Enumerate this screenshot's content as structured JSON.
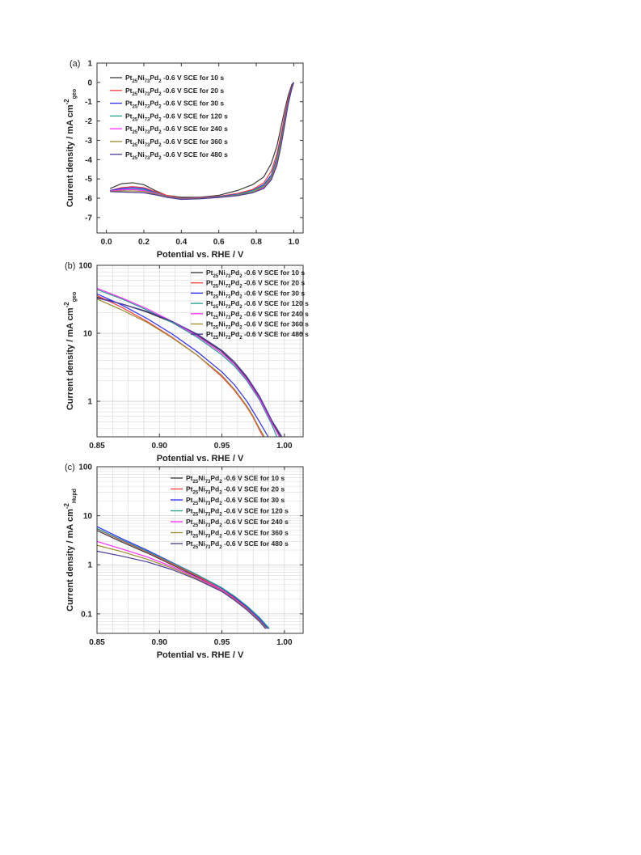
{
  "chart_data": [
    {
      "panel_label": "(a)",
      "type": "line",
      "xlabel": "Potential vs. RHE / V",
      "ylabel": "Current density / mA cm",
      "ylabel_sup": "-2",
      "ylabel_sub": "geo",
      "xscale": "linear",
      "yscale": "linear",
      "xlim": [
        -0.05,
        1.05
      ],
      "ylim": [
        -7.8,
        1
      ],
      "xticks": [
        0.0,
        0.2,
        0.4,
        0.6,
        0.8,
        1.0
      ],
      "xtick_labels": [
        "0.0",
        "0.2",
        "0.4",
        "0.6",
        "0.8",
        "1.0"
      ],
      "yticks": [
        1,
        0,
        -1,
        -2,
        -3,
        -4,
        -5,
        -6,
        -7
      ],
      "ytick_labels": [
        "1",
        "0",
        "-1",
        "-2",
        "-3",
        "-4",
        "-5",
        "-6",
        "-7"
      ],
      "grid": false,
      "legend_position": "top-left",
      "series": [
        {
          "name": [
            "Pt",
            "25",
            "Ni",
            "73",
            "Pd",
            "2",
            " -0.6 V SCE for 10 s"
          ],
          "color": "#3a3a3a",
          "x": [
            0.02,
            0.08,
            0.14,
            0.2,
            0.26,
            0.32,
            0.4,
            0.5,
            0.6,
            0.7,
            0.78,
            0.84,
            0.88,
            0.91,
            0.93,
            0.95,
            0.97,
            0.99,
            1.0
          ],
          "y": [
            -5.5,
            -5.25,
            -5.2,
            -5.3,
            -5.6,
            -5.85,
            -5.95,
            -5.95,
            -5.85,
            -5.6,
            -5.3,
            -4.9,
            -4.2,
            -3.3,
            -2.4,
            -1.5,
            -0.7,
            -0.1,
            0.0
          ]
        },
        {
          "name": [
            "Pt",
            "25",
            "Ni",
            "73",
            "Pd",
            "2",
            " -0.6 V SCE for 20 s"
          ],
          "color": "#ff3b3b",
          "x": [
            0.02,
            0.08,
            0.14,
            0.2,
            0.26,
            0.32,
            0.4,
            0.5,
            0.6,
            0.7,
            0.78,
            0.84,
            0.88,
            0.91,
            0.93,
            0.95,
            0.97,
            0.99,
            1.0
          ],
          "y": [
            -5.6,
            -5.45,
            -5.4,
            -5.45,
            -5.65,
            -5.85,
            -6.0,
            -5.98,
            -5.9,
            -5.75,
            -5.55,
            -5.2,
            -4.6,
            -3.7,
            -2.8,
            -1.8,
            -0.9,
            -0.2,
            0.0
          ]
        },
        {
          "name": [
            "Pt",
            "25",
            "Ni",
            "73",
            "Pd",
            "2",
            " -0.6 V SCE for 30 s"
          ],
          "color": "#2b2bff",
          "x": [
            0.02,
            0.08,
            0.14,
            0.2,
            0.26,
            0.32,
            0.4,
            0.5,
            0.6,
            0.7,
            0.78,
            0.84,
            0.88,
            0.91,
            0.93,
            0.95,
            0.97,
            0.99,
            1.0
          ],
          "y": [
            -5.6,
            -5.5,
            -5.45,
            -5.5,
            -5.7,
            -5.9,
            -6.02,
            -6.0,
            -5.92,
            -5.8,
            -5.6,
            -5.3,
            -4.8,
            -3.9,
            -3.0,
            -2.0,
            -1.0,
            -0.25,
            0.0
          ]
        },
        {
          "name": [
            "Pt",
            "25",
            "Ni",
            "73",
            "Pd",
            "2",
            " -0.6 V SCE for 120 s"
          ],
          "color": "#20a08a",
          "x": [
            0.02,
            0.08,
            0.14,
            0.2,
            0.26,
            0.32,
            0.4,
            0.5,
            0.6,
            0.7,
            0.78,
            0.84,
            0.88,
            0.91,
            0.93,
            0.95,
            0.97,
            0.99,
            1.0
          ],
          "y": [
            -5.62,
            -5.55,
            -5.52,
            -5.55,
            -5.72,
            -5.9,
            -6.02,
            -6.0,
            -5.93,
            -5.82,
            -5.62,
            -5.35,
            -4.9,
            -4.0,
            -3.1,
            -2.1,
            -1.05,
            -0.3,
            0.0
          ]
        },
        {
          "name": [
            "Pt",
            "25",
            "Ni",
            "73",
            "Pd",
            "2",
            " -0.6 V SCE for 240 s"
          ],
          "color": "#ff2bff",
          "x": [
            0.02,
            0.08,
            0.14,
            0.2,
            0.26,
            0.32,
            0.4,
            0.5,
            0.6,
            0.7,
            0.78,
            0.84,
            0.88,
            0.91,
            0.93,
            0.95,
            0.97,
            0.99,
            1.0
          ],
          "y": [
            -5.62,
            -5.57,
            -5.55,
            -5.6,
            -5.75,
            -5.92,
            -6.03,
            -6.01,
            -5.95,
            -5.85,
            -5.7,
            -5.45,
            -5.0,
            -4.2,
            -3.3,
            -2.2,
            -1.1,
            -0.3,
            0.0
          ]
        },
        {
          "name": [
            "Pt",
            "25",
            "Ni",
            "73",
            "Pd",
            "2",
            " -0.6 V SCE for 360 s"
          ],
          "color": "#9a8a2a",
          "x": [
            0.02,
            0.08,
            0.14,
            0.2,
            0.26,
            0.32,
            0.4,
            0.5,
            0.6,
            0.7,
            0.78,
            0.84,
            0.88,
            0.91,
            0.93,
            0.95,
            0.97,
            0.99,
            1.0
          ],
          "y": [
            -5.64,
            -5.62,
            -5.62,
            -5.65,
            -5.78,
            -5.93,
            -6.04,
            -6.02,
            -5.95,
            -5.85,
            -5.68,
            -5.4,
            -4.95,
            -4.1,
            -3.2,
            -2.15,
            -1.1,
            -0.3,
            0.0
          ]
        },
        {
          "name": [
            "Pt",
            "25",
            "Ni",
            "73",
            "Pd",
            "2",
            " -0.6 V SCE for 480 s"
          ],
          "color": "#4a3a9a",
          "x": [
            0.02,
            0.08,
            0.14,
            0.2,
            0.26,
            0.32,
            0.4,
            0.5,
            0.6,
            0.7,
            0.78,
            0.84,
            0.88,
            0.91,
            0.93,
            0.95,
            0.97,
            0.99,
            1.0
          ],
          "y": [
            -5.66,
            -5.68,
            -5.7,
            -5.72,
            -5.82,
            -5.95,
            -6.06,
            -6.03,
            -5.96,
            -5.87,
            -5.72,
            -5.5,
            -5.05,
            -4.3,
            -3.4,
            -2.3,
            -1.15,
            -0.3,
            0.0
          ]
        }
      ]
    },
    {
      "panel_label": "(b)",
      "type": "line",
      "xlabel": "Potential vs. RHE / V",
      "ylabel": "Current density / mA cm",
      "ylabel_sup": "-2",
      "ylabel_sub": "geo",
      "xscale": "linear",
      "yscale": "log",
      "xlim": [
        0.85,
        1.015
      ],
      "ylim": [
        0.3,
        100
      ],
      "xticks": [
        0.85,
        0.9,
        0.95,
        1.0
      ],
      "xtick_labels": [
        "0.85",
        "0.90",
        "0.95",
        "1.00"
      ],
      "yticks": [
        1,
        10,
        100
      ],
      "ytick_labels": [
        "1",
        "10",
        "100"
      ],
      "grid": true,
      "legend_position": "top-right",
      "series": [
        {
          "name": [
            "Pt",
            "25",
            "Ni",
            "73",
            "Pd",
            "2",
            " -0.6 V SCE for 10 s"
          ],
          "color": "#3a3a3a",
          "x": [
            0.85,
            0.87,
            0.89,
            0.91,
            0.93,
            0.95,
            0.96,
            0.97,
            0.98,
            0.99,
            0.997
          ],
          "y": [
            34,
            27,
            20.5,
            14.5,
            9.5,
            5.4,
            3.6,
            2.2,
            1.15,
            0.5,
            0.3
          ]
        },
        {
          "name": [
            "Pt",
            "25",
            "Ni",
            "73",
            "Pd",
            "2",
            " -0.6 V SCE for 20 s"
          ],
          "color": "#ff3b3b",
          "x": [
            0.85,
            0.87,
            0.89,
            0.91,
            0.93,
            0.95,
            0.96,
            0.97,
            0.975,
            0.98,
            0.983
          ],
          "y": [
            36,
            24,
            15,
            8.8,
            4.8,
            2.3,
            1.45,
            0.82,
            0.58,
            0.38,
            0.3
          ]
        },
        {
          "name": [
            "Pt",
            "25",
            "Ni",
            "73",
            "Pd",
            "2",
            " -0.6 V SCE for 30 s"
          ],
          "color": "#2b2bff",
          "x": [
            0.85,
            0.87,
            0.89,
            0.91,
            0.93,
            0.95,
            0.96,
            0.97,
            0.98,
            0.987
          ],
          "y": [
            38,
            26,
            16.5,
            9.8,
            5.4,
            2.7,
            1.75,
            1.0,
            0.5,
            0.3
          ]
        },
        {
          "name": [
            "Pt",
            "25",
            "Ni",
            "73",
            "Pd",
            "2",
            " -0.6 V SCE for 120 s"
          ],
          "color": "#20a08a",
          "x": [
            0.85,
            0.87,
            0.89,
            0.91,
            0.93,
            0.95,
            0.96,
            0.97,
            0.98,
            0.99,
            0.994
          ],
          "y": [
            44,
            32,
            22,
            14.5,
            8.8,
            4.8,
            3.3,
            2.0,
            1.05,
            0.45,
            0.3
          ]
        },
        {
          "name": [
            "Pt",
            "25",
            "Ni",
            "73",
            "Pd",
            "2",
            " -0.6 V SCE for 240 s"
          ],
          "color": "#ff2bff",
          "x": [
            0.85,
            0.87,
            0.89,
            0.91,
            0.93,
            0.95,
            0.96,
            0.97,
            0.98,
            0.99,
            0.996
          ],
          "y": [
            46,
            33,
            23,
            15,
            9.2,
            5.1,
            3.5,
            2.1,
            1.1,
            0.48,
            0.3
          ]
        },
        {
          "name": [
            "Pt",
            "25",
            "Ni",
            "73",
            "Pd",
            "2",
            " -0.6 V SCE for 360 s"
          ],
          "color": "#9a8a2a",
          "x": [
            0.85,
            0.87,
            0.89,
            0.91,
            0.93,
            0.95,
            0.96,
            0.97,
            0.975,
            0.98,
            0.984
          ],
          "y": [
            32,
            22,
            14.5,
            8.6,
            4.8,
            2.4,
            1.5,
            0.85,
            0.6,
            0.4,
            0.3
          ]
        },
        {
          "name": [
            "Pt",
            "25",
            "Ni",
            "73",
            "Pd",
            "2",
            " -0.6 V SCE for 480 s"
          ],
          "color": "#4a3a9a",
          "x": [
            0.85,
            0.87,
            0.89,
            0.91,
            0.93,
            0.95,
            0.96,
            0.97,
            0.98,
            0.99,
            0.998
          ],
          "y": [
            33,
            27,
            21,
            15,
            9.8,
            5.6,
            3.8,
            2.3,
            1.2,
            0.52,
            0.3
          ]
        }
      ]
    },
    {
      "panel_label": "(c)",
      "type": "line",
      "xlabel": "Potential vs. RHE / V",
      "ylabel": "Current density / mA cm",
      "ylabel_sup": "-2",
      "ylabel_sub": "Hupd",
      "xscale": "linear",
      "yscale": "log",
      "xlim": [
        0.85,
        1.015
      ],
      "ylim": [
        0.04,
        100
      ],
      "xticks": [
        0.85,
        0.9,
        0.95,
        1.0
      ],
      "xtick_labels": [
        "0.85",
        "0.90",
        "0.95",
        "1.00"
      ],
      "yticks": [
        0.1,
        1,
        10,
        100
      ],
      "ytick_labels": [
        "0.1",
        "1",
        "10",
        "100"
      ],
      "grid": true,
      "legend_position": "top-right",
      "series": [
        {
          "name": [
            "Pt",
            "25",
            "Ni",
            "73",
            "Pd",
            "2",
            " -0.6 V SCE for 10 s"
          ],
          "color": "#3a3a3a",
          "x": [
            0.85,
            0.87,
            0.89,
            0.91,
            0.93,
            0.95,
            0.96,
            0.97,
            0.98,
            0.985
          ],
          "y": [
            5.0,
            2.9,
            1.75,
            1.0,
            0.57,
            0.3,
            0.2,
            0.125,
            0.072,
            0.05
          ]
        },
        {
          "name": [
            "Pt",
            "25",
            "Ni",
            "73",
            "Pd",
            "2",
            " -0.6 V SCE for 20 s"
          ],
          "color": "#ff3b3b",
          "x": [
            0.85,
            0.87,
            0.89,
            0.91,
            0.93,
            0.95,
            0.96,
            0.97,
            0.98,
            0.986
          ],
          "y": [
            5.4,
            3.1,
            1.85,
            1.05,
            0.6,
            0.31,
            0.21,
            0.13,
            0.075,
            0.05
          ]
        },
        {
          "name": [
            "Pt",
            "25",
            "Ni",
            "73",
            "Pd",
            "2",
            " -0.6 V SCE for 30 s"
          ],
          "color": "#2b2bff",
          "x": [
            0.85,
            0.87,
            0.89,
            0.91,
            0.93,
            0.95,
            0.96,
            0.97,
            0.98,
            0.987
          ],
          "y": [
            6.0,
            3.4,
            2.0,
            1.12,
            0.63,
            0.33,
            0.22,
            0.138,
            0.08,
            0.05
          ]
        },
        {
          "name": [
            "Pt",
            "25",
            "Ni",
            "73",
            "Pd",
            "2",
            " -0.6 V SCE for 120 s"
          ],
          "color": "#20a08a",
          "x": [
            0.85,
            0.87,
            0.89,
            0.91,
            0.93,
            0.95,
            0.96,
            0.97,
            0.98,
            0.988
          ],
          "y": [
            5.5,
            3.2,
            1.9,
            1.1,
            0.63,
            0.34,
            0.23,
            0.145,
            0.085,
            0.05
          ]
        },
        {
          "name": [
            "Pt",
            "25",
            "Ni",
            "73",
            "Pd",
            "2",
            " -0.6 V SCE for 240 s"
          ],
          "color": "#ff2bff",
          "x": [
            0.85,
            0.87,
            0.89,
            0.91,
            0.93,
            0.95,
            0.96,
            0.97,
            0.98,
            0.986
          ],
          "y": [
            3.0,
            2.1,
            1.45,
            0.92,
            0.55,
            0.3,
            0.2,
            0.126,
            0.074,
            0.05
          ]
        },
        {
          "name": [
            "Pt",
            "25",
            "Ni",
            "73",
            "Pd",
            "2",
            " -0.6 V SCE for 360 s"
          ],
          "color": "#9a8a2a",
          "x": [
            0.85,
            0.87,
            0.89,
            0.91,
            0.93,
            0.95,
            0.96,
            0.97,
            0.98,
            0.986
          ],
          "y": [
            2.5,
            1.85,
            1.3,
            0.86,
            0.52,
            0.29,
            0.195,
            0.124,
            0.073,
            0.05
          ]
        },
        {
          "name": [
            "Pt",
            "25",
            "Ni",
            "73",
            "Pd",
            "2",
            " -0.6 V SCE for 480 s"
          ],
          "color": "#4a3a9a",
          "x": [
            0.85,
            0.87,
            0.89,
            0.91,
            0.93,
            0.95,
            0.96,
            0.97,
            0.98,
            0.985
          ],
          "y": [
            1.9,
            1.5,
            1.15,
            0.8,
            0.5,
            0.285,
            0.19,
            0.12,
            0.07,
            0.05
          ]
        }
      ]
    }
  ]
}
